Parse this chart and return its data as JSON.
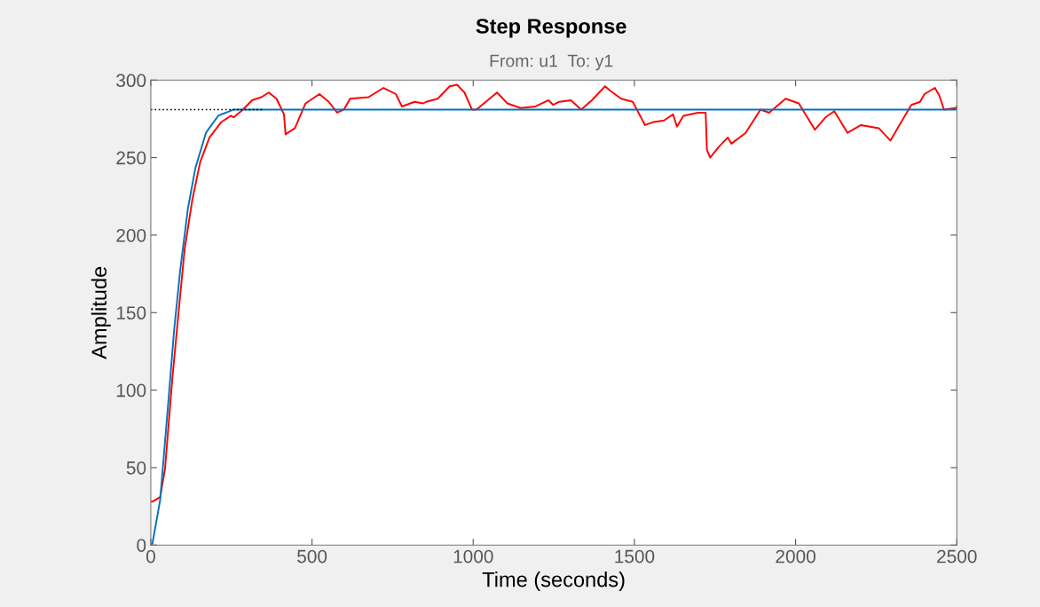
{
  "chart_data": {
    "type": "line",
    "title": "Step Response",
    "subtitle": "From: u1  To: y1",
    "xlabel": "Time (seconds)",
    "ylabel": "Amplitude",
    "xlim": [
      0,
      2500
    ],
    "ylim": [
      0,
      300
    ],
    "xticks": [
      0,
      500,
      1000,
      1500,
      2000,
      2500
    ],
    "yticks": [
      0,
      50,
      100,
      150,
      200,
      250,
      300
    ],
    "grid": false,
    "legend": false,
    "series": [
      {
        "color": "#ff0000",
        "x": [
          0,
          5,
          29,
          44,
          67,
          87,
          105,
          129,
          153,
          182,
          219,
          248,
          257,
          286,
          314,
          343,
          366,
          390,
          413,
          418,
          447,
          480,
          523,
          552,
          578,
          599,
          618,
          675,
          722,
          760,
          779,
          818,
          845,
          854,
          890,
          927,
          950,
          973,
          996,
          1010,
          1074,
          1106,
          1147,
          1193,
          1234,
          1248,
          1267,
          1303,
          1335,
          1368,
          1409,
          1426,
          1459,
          1495,
          1533,
          1560,
          1592,
          1620,
          1632,
          1652,
          1698,
          1721,
          1725,
          1735,
          1762,
          1790,
          1801,
          1845,
          1891,
          1918,
          1969,
          2010,
          2060,
          2093,
          2120,
          2161,
          2203,
          2258,
          2294,
          2322,
          2359,
          2386,
          2400,
          2432,
          2446,
          2460,
          2497,
          2500
        ],
        "values": [
          28,
          28,
          31,
          49,
          108,
          152,
          191,
          223,
          247,
          263,
          273,
          277,
          276,
          281,
          287,
          289,
          292,
          288,
          278,
          265,
          269,
          285,
          291,
          286,
          279,
          281,
          288,
          289,
          295,
          291,
          283,
          286,
          285,
          286,
          288,
          296,
          297,
          292,
          281,
          281,
          292,
          285,
          282,
          283,
          287,
          284,
          286,
          287,
          281,
          287,
          296,
          293,
          288,
          286,
          271,
          273,
          274,
          278,
          270,
          277,
          279,
          279,
          255,
          250,
          257,
          263,
          259,
          266,
          281,
          279,
          288,
          285,
          268,
          276,
          280,
          266,
          271,
          269,
          261,
          271,
          284,
          286,
          291,
          295,
          290,
          281,
          282,
          283
        ]
      },
      {
        "color": "#0072bd",
        "x": [
          0,
          5,
          29,
          53,
          72,
          91,
          115,
          138,
          171,
          209,
          257,
          305,
          2500
        ],
        "values": [
          0,
          1,
          29,
          89,
          138,
          177,
          217,
          243,
          266,
          277,
          281,
          281,
          281
        ]
      },
      {
        "color": "#000000",
        "line_style": "dotted",
        "x": [
          0,
          345
        ],
        "values": [
          281,
          281
        ]
      }
    ]
  }
}
